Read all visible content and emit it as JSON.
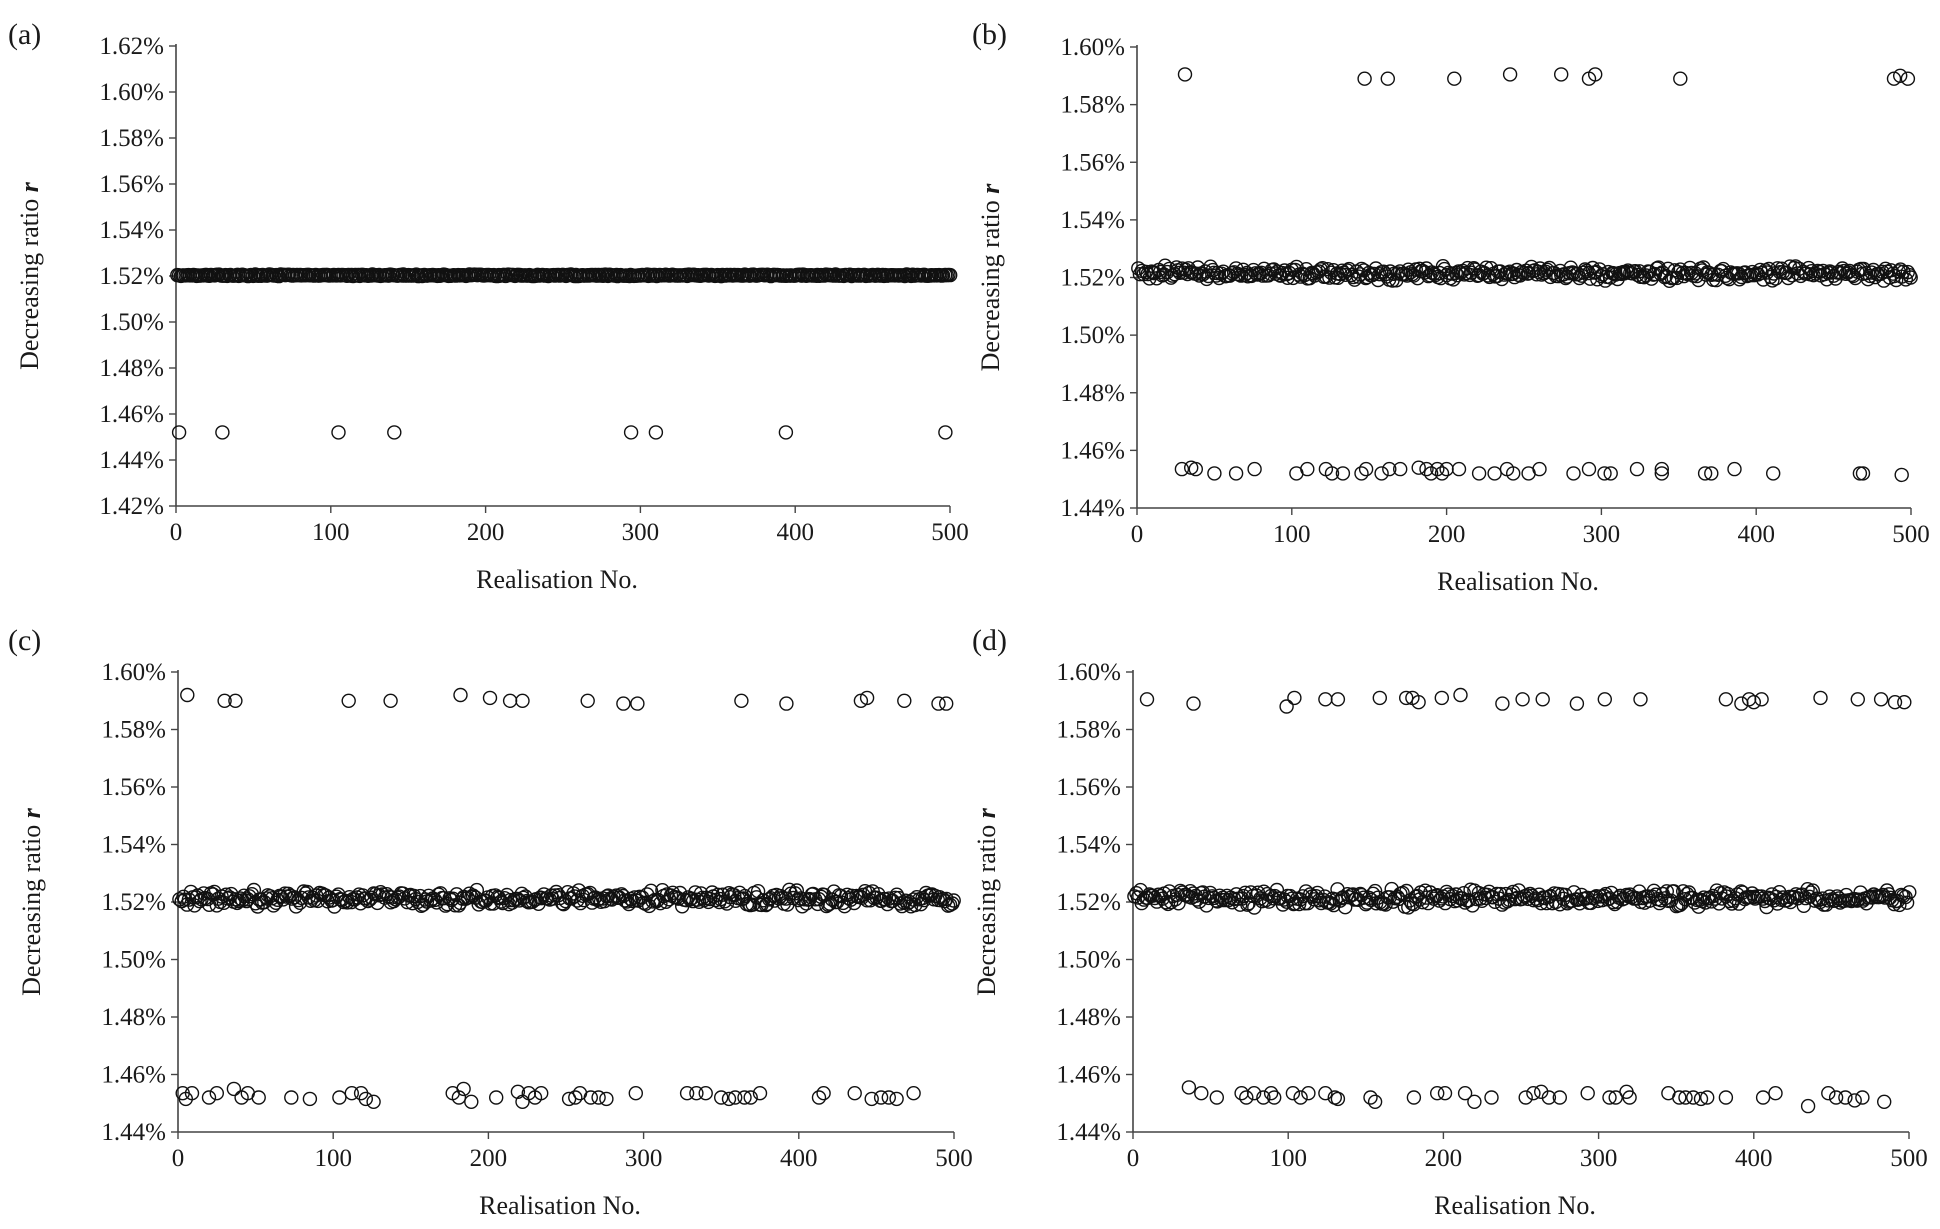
{
  "chart_data": [
    {
      "type": "scatter",
      "panel": "(a)",
      "xlabel": "Realisation No.",
      "ylabel": "Decreasing ratio ",
      "ylabel_var": "r",
      "xlim": [
        0,
        500
      ],
      "ylim": [
        1.42,
        1.62
      ],
      "xticks": [
        0,
        100,
        200,
        300,
        400,
        500
      ],
      "yticks": [
        1.42,
        1.44,
        1.46,
        1.48,
        1.5,
        1.52,
        1.54,
        1.56,
        1.58,
        1.6,
        1.62
      ],
      "ytick_labels": [
        "1.42%",
        "1.44%",
        "1.46%",
        "1.48%",
        "1.50%",
        "1.52%",
        "1.54%",
        "1.56%",
        "1.58%",
        "1.60%",
        "1.62%"
      ],
      "band": {
        "center": 1.5203,
        "spread": 0.0004,
        "count": 480,
        "x_range": [
          1,
          500
        ]
      },
      "outliers": [
        {
          "x": 2,
          "y": 1.452
        },
        {
          "x": 30,
          "y": 1.452
        },
        {
          "x": 105,
          "y": 1.452
        },
        {
          "x": 141,
          "y": 1.452
        },
        {
          "x": 294,
          "y": 1.452
        },
        {
          "x": 310,
          "y": 1.452
        },
        {
          "x": 394,
          "y": 1.452
        },
        {
          "x": 497,
          "y": 1.452
        }
      ]
    },
    {
      "type": "scatter",
      "panel": "(b)",
      "xlabel": "Realisation No.",
      "ylabel": "Decreasing ratio ",
      "ylabel_var": "r",
      "xlim": [
        0,
        500
      ],
      "ylim": [
        1.44,
        1.6
      ],
      "xticks": [
        0,
        100,
        200,
        300,
        400,
        500
      ],
      "yticks": [
        1.44,
        1.46,
        1.48,
        1.5,
        1.52,
        1.54,
        1.56,
        1.58,
        1.6
      ],
      "ytick_labels": [
        "1.44%",
        "1.46%",
        "1.48%",
        "1.50%",
        "1.52%",
        "1.54%",
        "1.56%",
        "1.58%",
        "1.60%"
      ],
      "band": {
        "center": 1.5215,
        "spread": 0.0028,
        "count": 430,
        "x_range": [
          1,
          500
        ]
      },
      "outliers": [
        {
          "x": 31,
          "y": 1.5905
        },
        {
          "x": 147,
          "y": 1.589
        },
        {
          "x": 162,
          "y": 1.589
        },
        {
          "x": 205,
          "y": 1.589
        },
        {
          "x": 241,
          "y": 1.5905
        },
        {
          "x": 274,
          "y": 1.5905
        },
        {
          "x": 292,
          "y": 1.589
        },
        {
          "x": 296,
          "y": 1.5905
        },
        {
          "x": 351,
          "y": 1.589
        },
        {
          "x": 489,
          "y": 1.589
        },
        {
          "x": 493,
          "y": 1.59
        },
        {
          "x": 498,
          "y": 1.589
        },
        {
          "x": 29,
          "y": 1.4535
        },
        {
          "x": 35,
          "y": 1.454
        },
        {
          "x": 38,
          "y": 1.4535
        },
        {
          "x": 50,
          "y": 1.452
        },
        {
          "x": 64,
          "y": 1.452
        },
        {
          "x": 76,
          "y": 1.4535
        },
        {
          "x": 103,
          "y": 1.452
        },
        {
          "x": 110,
          "y": 1.4535
        },
        {
          "x": 122,
          "y": 1.4535
        },
        {
          "x": 126,
          "y": 1.452
        },
        {
          "x": 133,
          "y": 1.452
        },
        {
          "x": 145,
          "y": 1.452
        },
        {
          "x": 148,
          "y": 1.4535
        },
        {
          "x": 158,
          "y": 1.452
        },
        {
          "x": 163,
          "y": 1.4535
        },
        {
          "x": 170,
          "y": 1.4535
        },
        {
          "x": 182,
          "y": 1.454
        },
        {
          "x": 187,
          "y": 1.4535
        },
        {
          "x": 190,
          "y": 1.452
        },
        {
          "x": 194,
          "y": 1.4535
        },
        {
          "x": 197,
          "y": 1.452
        },
        {
          "x": 200,
          "y": 1.4535
        },
        {
          "x": 208,
          "y": 1.4535
        },
        {
          "x": 221,
          "y": 1.452
        },
        {
          "x": 231,
          "y": 1.452
        },
        {
          "x": 239,
          "y": 1.4535
        },
        {
          "x": 243,
          "y": 1.452
        },
        {
          "x": 253,
          "y": 1.452
        },
        {
          "x": 260,
          "y": 1.4535
        },
        {
          "x": 282,
          "y": 1.452
        },
        {
          "x": 292,
          "y": 1.4535
        },
        {
          "x": 302,
          "y": 1.452
        },
        {
          "x": 306,
          "y": 1.452
        },
        {
          "x": 323,
          "y": 1.4535
        },
        {
          "x": 339,
          "y": 1.4535
        },
        {
          "x": 339,
          "y": 1.452
        },
        {
          "x": 367,
          "y": 1.452
        },
        {
          "x": 371,
          "y": 1.452
        },
        {
          "x": 386,
          "y": 1.4535
        },
        {
          "x": 411,
          "y": 1.452
        },
        {
          "x": 467,
          "y": 1.452
        },
        {
          "x": 469,
          "y": 1.452
        },
        {
          "x": 494,
          "y": 1.4515
        }
      ]
    },
    {
      "type": "scatter",
      "panel": "(c)",
      "xlabel": "Realisation No.",
      "ylabel": "Decreasing ratio ",
      "ylabel_var": "r",
      "xlim": [
        0,
        500
      ],
      "ylim": [
        1.44,
        1.6
      ],
      "xticks": [
        0,
        100,
        200,
        300,
        400,
        500
      ],
      "yticks": [
        1.44,
        1.46,
        1.48,
        1.5,
        1.52,
        1.54,
        1.56,
        1.58,
        1.6
      ],
      "ytick_labels": [
        "1.44%",
        "1.46%",
        "1.48%",
        "1.50%",
        "1.52%",
        "1.54%",
        "1.56%",
        "1.58%",
        "1.60%"
      ],
      "band": {
        "center": 1.5212,
        "spread": 0.0032,
        "count": 420,
        "x_range": [
          1,
          500
        ]
      },
      "outliers": [
        {
          "x": 6,
          "y": 1.592
        },
        {
          "x": 30,
          "y": 1.59
        },
        {
          "x": 37,
          "y": 1.59
        },
        {
          "x": 110,
          "y": 1.59
        },
        {
          "x": 137,
          "y": 1.59
        },
        {
          "x": 182,
          "y": 1.592
        },
        {
          "x": 201,
          "y": 1.591
        },
        {
          "x": 214,
          "y": 1.59
        },
        {
          "x": 222,
          "y": 1.59
        },
        {
          "x": 264,
          "y": 1.59
        },
        {
          "x": 287,
          "y": 1.589
        },
        {
          "x": 296,
          "y": 1.589
        },
        {
          "x": 363,
          "y": 1.59
        },
        {
          "x": 392,
          "y": 1.589
        },
        {
          "x": 440,
          "y": 1.59
        },
        {
          "x": 444,
          "y": 1.591
        },
        {
          "x": 468,
          "y": 1.59
        },
        {
          "x": 490,
          "y": 1.589
        },
        {
          "x": 495,
          "y": 1.589
        },
        {
          "x": 3,
          "y": 1.4535
        },
        {
          "x": 5,
          "y": 1.4515
        },
        {
          "x": 9,
          "y": 1.4535
        },
        {
          "x": 20,
          "y": 1.452
        },
        {
          "x": 25,
          "y": 1.4535
        },
        {
          "x": 36,
          "y": 1.455
        },
        {
          "x": 41,
          "y": 1.452
        },
        {
          "x": 45,
          "y": 1.4535
        },
        {
          "x": 52,
          "y": 1.452
        },
        {
          "x": 73,
          "y": 1.452
        },
        {
          "x": 85,
          "y": 1.4515
        },
        {
          "x": 104,
          "y": 1.452
        },
        {
          "x": 112,
          "y": 1.4535
        },
        {
          "x": 118,
          "y": 1.4535
        },
        {
          "x": 121,
          "y": 1.4515
        },
        {
          "x": 126,
          "y": 1.4505
        },
        {
          "x": 177,
          "y": 1.4535
        },
        {
          "x": 181,
          "y": 1.452
        },
        {
          "x": 184,
          "y": 1.455
        },
        {
          "x": 189,
          "y": 1.4505
        },
        {
          "x": 205,
          "y": 1.452
        },
        {
          "x": 219,
          "y": 1.454
        },
        {
          "x": 222,
          "y": 1.4505
        },
        {
          "x": 226,
          "y": 1.4535
        },
        {
          "x": 230,
          "y": 1.452
        },
        {
          "x": 234,
          "y": 1.4535
        },
        {
          "x": 252,
          "y": 1.4515
        },
        {
          "x": 256,
          "y": 1.452
        },
        {
          "x": 259,
          "y": 1.4535
        },
        {
          "x": 266,
          "y": 1.452
        },
        {
          "x": 271,
          "y": 1.452
        },
        {
          "x": 276,
          "y": 1.4515
        },
        {
          "x": 295,
          "y": 1.4535
        },
        {
          "x": 328,
          "y": 1.4535
        },
        {
          "x": 334,
          "y": 1.4535
        },
        {
          "x": 340,
          "y": 1.4535
        },
        {
          "x": 350,
          "y": 1.452
        },
        {
          "x": 355,
          "y": 1.4515
        },
        {
          "x": 359,
          "y": 1.452
        },
        {
          "x": 365,
          "y": 1.452
        },
        {
          "x": 369,
          "y": 1.452
        },
        {
          "x": 375,
          "y": 1.4535
        },
        {
          "x": 413,
          "y": 1.452
        },
        {
          "x": 416,
          "y": 1.4535
        },
        {
          "x": 436,
          "y": 1.4535
        },
        {
          "x": 447,
          "y": 1.4515
        },
        {
          "x": 453,
          "y": 1.452
        },
        {
          "x": 458,
          "y": 1.452
        },
        {
          "x": 463,
          "y": 1.4515
        },
        {
          "x": 474,
          "y": 1.4535
        }
      ]
    },
    {
      "type": "scatter",
      "panel": "(d)",
      "xlabel": "Realisation No.",
      "ylabel": "Decreasing ratio ",
      "ylabel_var": "r",
      "xlim": [
        0,
        500
      ],
      "ylim": [
        1.44,
        1.6
      ],
      "xticks": [
        0,
        100,
        200,
        300,
        400,
        500
      ],
      "yticks": [
        1.44,
        1.46,
        1.48,
        1.5,
        1.52,
        1.54,
        1.56,
        1.58,
        1.6
      ],
      "ytick_labels": [
        "1.44%",
        "1.46%",
        "1.48%",
        "1.50%",
        "1.52%",
        "1.54%",
        "1.56%",
        "1.58%",
        "1.60%"
      ],
      "band": {
        "center": 1.5212,
        "spread": 0.0034,
        "count": 420,
        "x_range": [
          1,
          500
        ]
      },
      "outliers": [
        {
          "x": 9,
          "y": 1.5905
        },
        {
          "x": 39,
          "y": 1.589
        },
        {
          "x": 99,
          "y": 1.588
        },
        {
          "x": 104,
          "y": 1.591
        },
        {
          "x": 124,
          "y": 1.5905
        },
        {
          "x": 132,
          "y": 1.5905
        },
        {
          "x": 159,
          "y": 1.591
        },
        {
          "x": 176,
          "y": 1.591
        },
        {
          "x": 180,
          "y": 1.591
        },
        {
          "x": 184,
          "y": 1.5895
        },
        {
          "x": 199,
          "y": 1.591
        },
        {
          "x": 211,
          "y": 1.592
        },
        {
          "x": 238,
          "y": 1.589
        },
        {
          "x": 251,
          "y": 1.5905
        },
        {
          "x": 264,
          "y": 1.5905
        },
        {
          "x": 286,
          "y": 1.589
        },
        {
          "x": 304,
          "y": 1.5905
        },
        {
          "x": 327,
          "y": 1.5905
        },
        {
          "x": 382,
          "y": 1.5905
        },
        {
          "x": 392,
          "y": 1.589
        },
        {
          "x": 397,
          "y": 1.5905
        },
        {
          "x": 400,
          "y": 1.5895
        },
        {
          "x": 405,
          "y": 1.5905
        },
        {
          "x": 443,
          "y": 1.591
        },
        {
          "x": 467,
          "y": 1.5905
        },
        {
          "x": 482,
          "y": 1.5905
        },
        {
          "x": 491,
          "y": 1.5895
        },
        {
          "x": 497,
          "y": 1.5895
        },
        {
          "x": 36,
          "y": 1.4555
        },
        {
          "x": 44,
          "y": 1.4535
        },
        {
          "x": 54,
          "y": 1.452
        },
        {
          "x": 70,
          "y": 1.4535
        },
        {
          "x": 73,
          "y": 1.452
        },
        {
          "x": 78,
          "y": 1.4535
        },
        {
          "x": 84,
          "y": 1.452
        },
        {
          "x": 89,
          "y": 1.4535
        },
        {
          "x": 91,
          "y": 1.452
        },
        {
          "x": 103,
          "y": 1.4535
        },
        {
          "x": 108,
          "y": 1.452
        },
        {
          "x": 113,
          "y": 1.4535
        },
        {
          "x": 124,
          "y": 1.4535
        },
        {
          "x": 130,
          "y": 1.452
        },
        {
          "x": 132,
          "y": 1.4515
        },
        {
          "x": 153,
          "y": 1.452
        },
        {
          "x": 156,
          "y": 1.4505
        },
        {
          "x": 181,
          "y": 1.452
        },
        {
          "x": 196,
          "y": 1.4535
        },
        {
          "x": 201,
          "y": 1.4535
        },
        {
          "x": 214,
          "y": 1.4535
        },
        {
          "x": 220,
          "y": 1.4505
        },
        {
          "x": 231,
          "y": 1.452
        },
        {
          "x": 253,
          "y": 1.452
        },
        {
          "x": 258,
          "y": 1.4535
        },
        {
          "x": 263,
          "y": 1.454
        },
        {
          "x": 268,
          "y": 1.452
        },
        {
          "x": 275,
          "y": 1.452
        },
        {
          "x": 293,
          "y": 1.4535
        },
        {
          "x": 307,
          "y": 1.452
        },
        {
          "x": 311,
          "y": 1.452
        },
        {
          "x": 318,
          "y": 1.454
        },
        {
          "x": 320,
          "y": 1.452
        },
        {
          "x": 345,
          "y": 1.4535
        },
        {
          "x": 352,
          "y": 1.452
        },
        {
          "x": 356,
          "y": 1.452
        },
        {
          "x": 361,
          "y": 1.452
        },
        {
          "x": 366,
          "y": 1.4515
        },
        {
          "x": 370,
          "y": 1.452
        },
        {
          "x": 382,
          "y": 1.452
        },
        {
          "x": 406,
          "y": 1.452
        },
        {
          "x": 414,
          "y": 1.4535
        },
        {
          "x": 435,
          "y": 1.449
        },
        {
          "x": 448,
          "y": 1.4535
        },
        {
          "x": 453,
          "y": 1.452
        },
        {
          "x": 459,
          "y": 1.452
        },
        {
          "x": 465,
          "y": 1.451
        },
        {
          "x": 470,
          "y": 1.452
        },
        {
          "x": 484,
          "y": 1.4505
        }
      ]
    }
  ]
}
